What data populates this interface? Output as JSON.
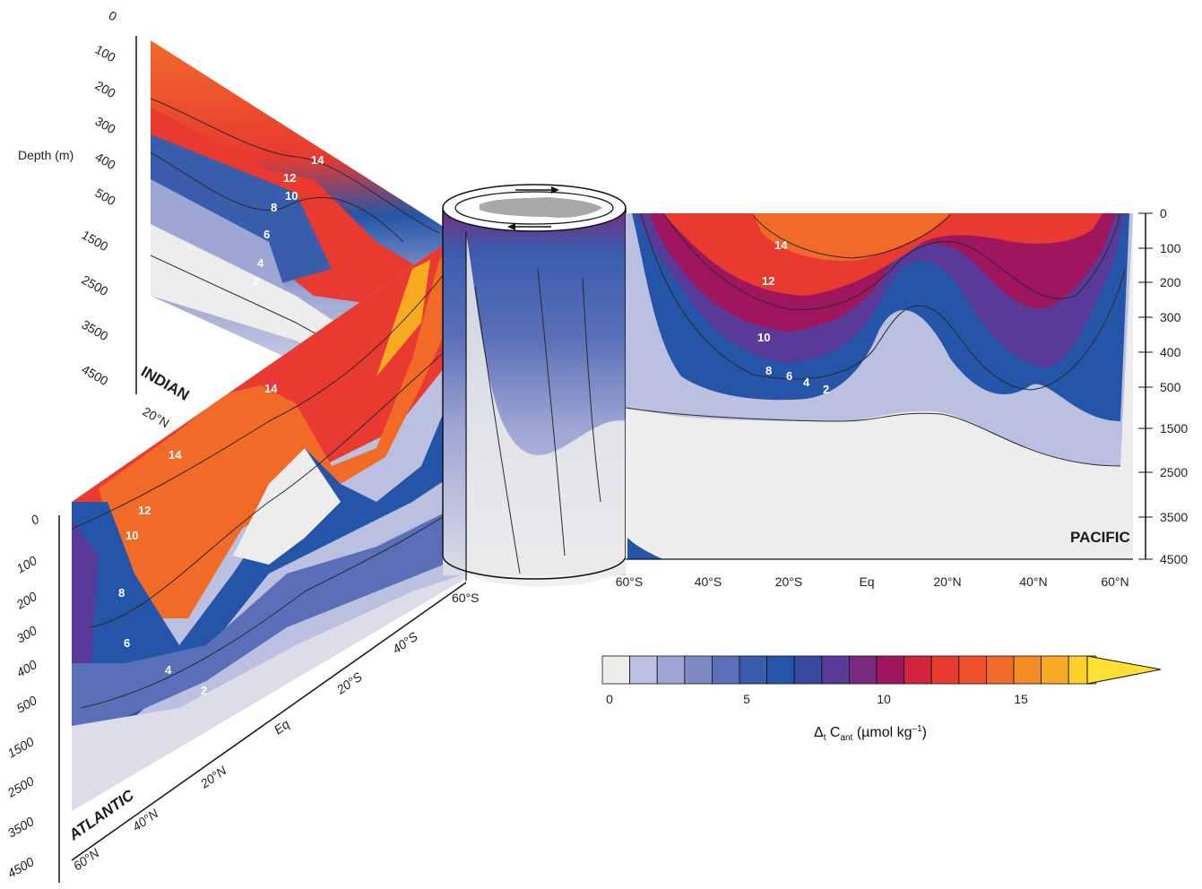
{
  "chart_data": {
    "type": "heatmap",
    "colorbar": {
      "label_prefix": "Δ",
      "label_sub1": "t",
      "label_mid": " C",
      "label_sub2": "ant",
      "label_unit": " (µmol kg",
      "label_sup": "–1",
      "label_close": ")",
      "ticks": [
        "0",
        "5",
        "10",
        "15"
      ],
      "tick_values": [
        0,
        5,
        10,
        15
      ],
      "range": [
        0,
        18
      ],
      "colors": [
        "#ededed",
        "#bcc0e0",
        "#9ea6d4",
        "#7f8ac5",
        "#5a6fb8",
        "#3a5cad",
        "#2555a8",
        "#3b48a0",
        "#5a3a98",
        "#7a2a7e",
        "#a0165e",
        "#d0243c",
        "#e83a30",
        "#f0502c",
        "#f16a28",
        "#f48a24",
        "#f8aa22",
        "#fdd02a",
        "#ffe033"
      ]
    },
    "axis_title": "Depth (m)",
    "depth_ticks_upper": [
      "0",
      "100",
      "200",
      "300",
      "400",
      "500"
    ],
    "depth_ticks_lower": [
      "1500",
      "2500",
      "3500",
      "4500"
    ],
    "sections": [
      {
        "name": "PACIFIC",
        "lat_ticks": [
          "60°S",
          "40°S",
          "20°S",
          "Eq",
          "20°N",
          "40°N",
          "60°N"
        ],
        "contour_labels": [
          "14",
          "12",
          "10",
          "8",
          "6",
          "4",
          "2"
        ]
      },
      {
        "name": "ATLANTIC",
        "lat_ticks": [
          "60°S",
          "40°S",
          "20°S",
          "Eq",
          "20°N",
          "40°N",
          "60°N"
        ],
        "contour_labels": [
          "14",
          "12",
          "10",
          "8",
          "6",
          "4",
          "2"
        ]
      },
      {
        "name": "INDIAN",
        "lat_ticks": [
          "20°N"
        ],
        "contour_labels": [
          "14",
          "12",
          "10",
          "8",
          "6",
          "4",
          "2"
        ]
      }
    ]
  }
}
